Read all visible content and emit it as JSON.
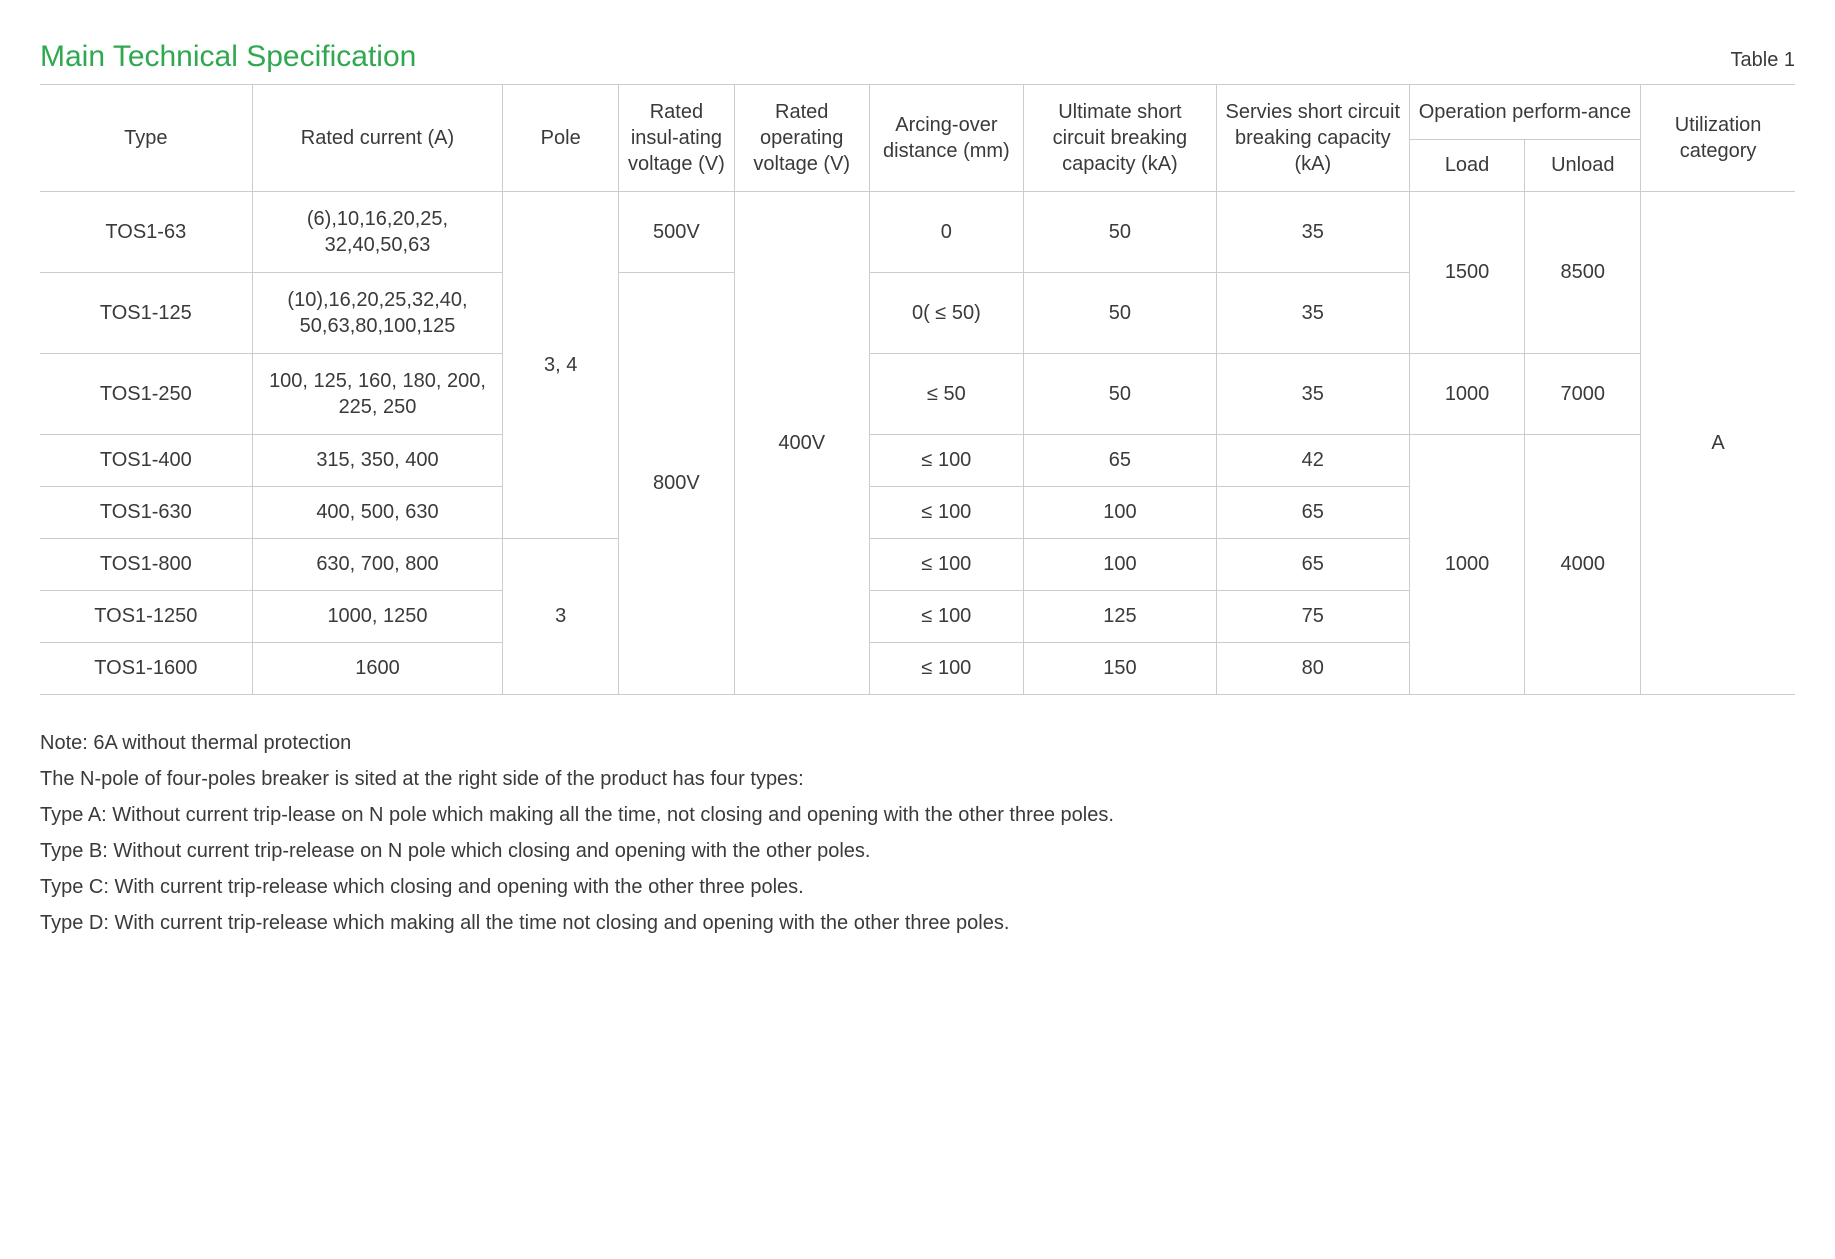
{
  "title": "Main Technical Specification",
  "table_label": "Table 1",
  "headers": {
    "type": "Type",
    "rated_current": "Rated current (A)",
    "pole": "Pole",
    "rated_insul": "Rated insul-ating voltage (V)",
    "rated_opv": "Rated operating voltage (V)",
    "arcing": "Arcing-over distance (mm)",
    "usc": "Ultimate short circuit breaking capacity (kA)",
    "ssc": "Servies short circuit breaking capacity (kA)",
    "op_perf": "Operation perform-ance",
    "op_load": "Load",
    "op_unload": "Unload",
    "util": "Utilization category"
  },
  "cells": {
    "pole_34": "3, 4",
    "pole_3": "3",
    "insul_500": "500V",
    "insul_800": "800V",
    "opv_400": "400V",
    "util_a": "A"
  },
  "op_groups": {
    "g1": {
      "load": "1500",
      "unload": "8500"
    },
    "g2": {
      "load": "1000",
      "unload": "7000"
    },
    "g3": {
      "load": "1000",
      "unload": "4000"
    }
  },
  "rows": [
    {
      "type": "TOS1-63",
      "rated": "(6),10,16,20,25, 32,40,50,63",
      "arc": "0",
      "usc": "50",
      "ssc": "35"
    },
    {
      "type": "TOS1-125",
      "rated": "(10),16,20,25,32,40, 50,63,80,100,125",
      "arc": "0( ≤ 50)",
      "usc": "50",
      "ssc": "35"
    },
    {
      "type": "TOS1-250",
      "rated": "100, 125, 160, 180, 200, 225, 250",
      "arc": "≤ 50",
      "usc": "50",
      "ssc": "35"
    },
    {
      "type": "TOS1-400",
      "rated": "315, 350, 400",
      "arc": "≤ 100",
      "usc": "65",
      "ssc": "42"
    },
    {
      "type": "TOS1-630",
      "rated": "400, 500, 630",
      "arc": "≤ 100",
      "usc": "100",
      "ssc": "65"
    },
    {
      "type": "TOS1-800",
      "rated": "630, 700, 800",
      "arc": "≤ 100",
      "usc": "100",
      "ssc": "65"
    },
    {
      "type": "TOS1-1250",
      "rated": "1000, 1250",
      "arc": "≤ 100",
      "usc": "125",
      "ssc": "75"
    },
    {
      "type": "TOS1-1600",
      "rated": "1600",
      "arc": "≤ 100",
      "usc": "150",
      "ssc": "80"
    }
  ],
  "notes": [
    "Note: 6A without thermal protection",
    "The N-pole of four-poles breaker is sited at the right side of the product has four types:",
    "Type A: Without current trip-lease on N pole which making all the time, not closing and opening with the other three poles.",
    "Type B: Without current trip-release on N pole which closing and opening with the other poles.",
    "Type C: With current trip-release which closing and opening with the other three poles.",
    "Type D: With current trip-release which making all the time not closing and opening with the other three poles."
  ],
  "style": {
    "title_color": "#2fa84f",
    "text_color": "#3a3a3a",
    "border_color": "#cccccc",
    "font_size_body": 20,
    "font_size_title": 30
  }
}
